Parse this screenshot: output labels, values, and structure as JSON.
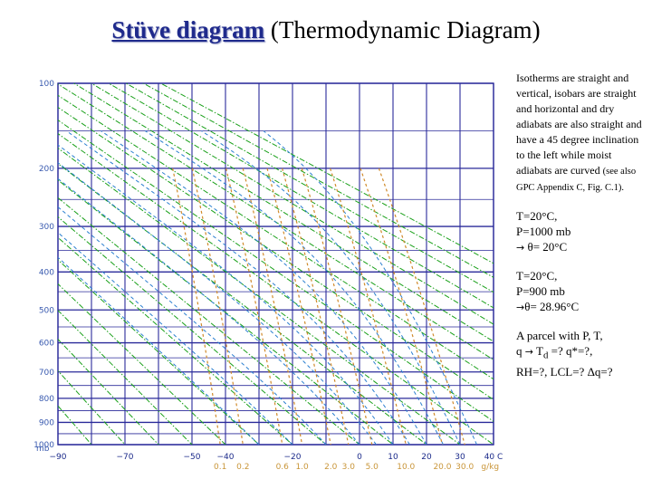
{
  "slide": {
    "title_bold": "Stüve diagram",
    "title_rest": " (Thermodynamic Diagram)"
  },
  "notes": {
    "description_main": "Isotherms are straight and vertical, isobars are straight and horizontal and dry adiabats are also straight and have a 45 degree inclination to the left while moist adiabats are curved ",
    "description_ref": "(see also GPC Appendix C, Fig. C.1).",
    "example1_line1": "T=20°C,",
    "example1_line2": "P=1000 mb",
    "example1_arrow": "→",
    "example1_result": " θ= 20°C",
    "example2_line1": "T=20°C,",
    "example2_line2": "P=900 mb",
    "example2_arrow": "→",
    "example2_result": "θ= 28.96°C",
    "question_line1": "A parcel with P, T,",
    "question_line2_a": "q ",
    "question_arrow": "→",
    "question_line2_b": " T",
    "question_sub": "d",
    "question_line2_c": " =? q*=?,",
    "question_line3": "RH=?, LCL=? Δq=?"
  },
  "chart_data": {
    "type": "stuve-diagram",
    "pressure_axis": {
      "unit": "mb",
      "ticks": [
        100,
        200,
        300,
        400,
        500,
        600,
        700,
        800,
        900,
        1000
      ],
      "tick_labels": [
        "100",
        "200",
        "300",
        "400",
        "500",
        "600",
        "700",
        "800",
        "900",
        "1000"
      ],
      "unit_label": "mb"
    },
    "temperature_axis": {
      "unit": "°C",
      "ticks": [
        -90,
        -80,
        -70,
        -60,
        -50,
        -40,
        -30,
        -20,
        -10,
        0,
        10,
        20,
        30,
        40
      ],
      "labeled_ticks": [
        "−90",
        "−70",
        "−50",
        "−40",
        "−20",
        "0",
        "10",
        "20",
        "30",
        "40 C"
      ],
      "labeled_values": [
        -90,
        -70,
        -50,
        -40,
        -20,
        0,
        10,
        20,
        30,
        40
      ]
    },
    "mixing_ratio_labels": [
      "0.1",
      "0.2",
      "0.6",
      "1.0",
      "2.0",
      "3.0",
      "5.0",
      "10.0",
      "20.0",
      "30.0",
      "g/kg"
    ],
    "mixing_ratio_values": [
      0.1,
      0.2,
      0.6,
      1.0,
      2.0,
      3.0,
      5.0,
      10.0,
      20.0,
      30.0
    ],
    "series": [
      {
        "kind": "dry-adiabat",
        "potential_temperature_C": [
          -90,
          -80,
          -70,
          -60,
          -50,
          -40,
          -30,
          -20,
          -10,
          0,
          10,
          20,
          30,
          40,
          50,
          60,
          70,
          80,
          90,
          100,
          110,
          120,
          130,
          140
        ]
      },
      {
        "kind": "moist-adiabat",
        "wet_bulb_potential_temperature_C": [
          -30,
          -20,
          -10,
          0,
          5,
          10,
          15,
          20,
          25,
          30,
          35
        ]
      },
      {
        "kind": "mixing-ratio",
        "g_per_kg": [
          0.1,
          0.2,
          0.6,
          1.0,
          2.0,
          3.0,
          5.0,
          10.0,
          20.0,
          30.0
        ]
      }
    ],
    "colors": {
      "grid": "#2a2a9a",
      "dry_adiabat": "#1aa01a",
      "moist_adiabat": "#2a7fd0",
      "mixing_ratio": "#d08a2a",
      "pressure_labels": "#3a5bb0",
      "temperature_labels": "#1b2a8a",
      "mixing_labels": "#c9963a"
    }
  }
}
